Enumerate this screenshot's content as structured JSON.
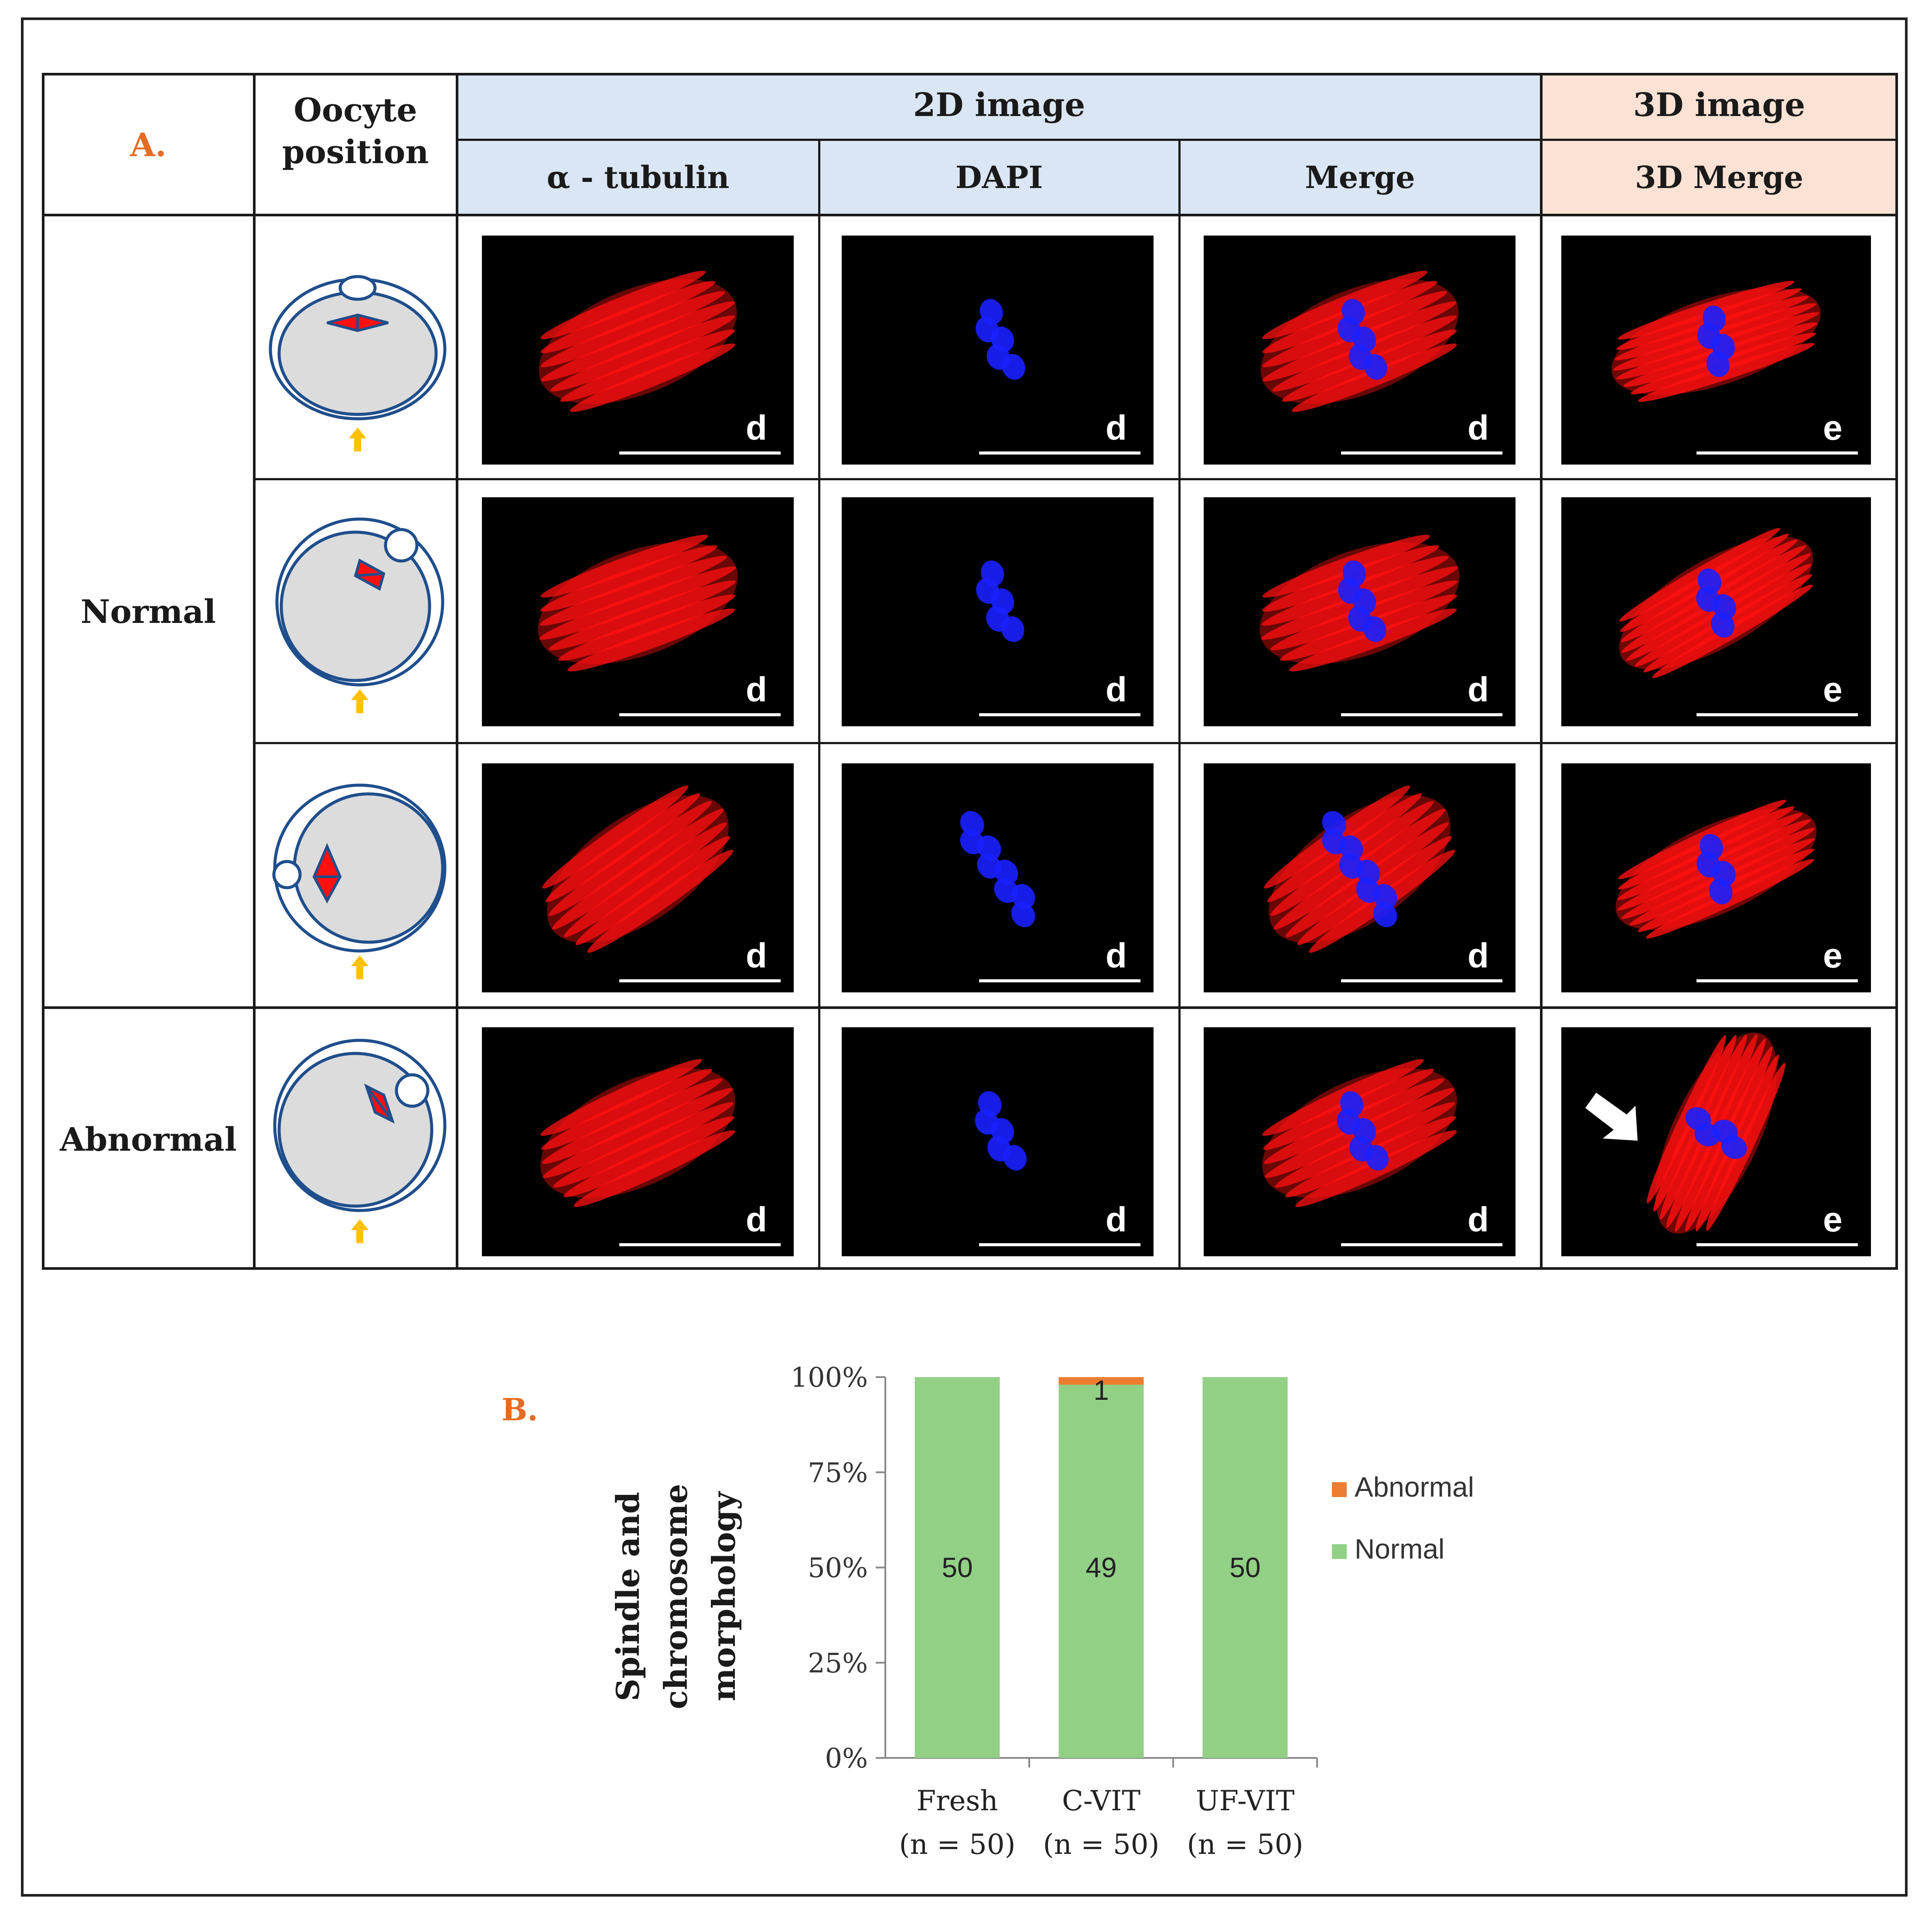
{
  "panel_a": {
    "label": "A.",
    "col_oocyte": "Oocyte position",
    "col_2d": "2D image",
    "col_3d": "3D image",
    "sub_tubulin": "α - tubulin",
    "sub_dapi": "DAPI",
    "sub_merge": "Merge",
    "sub_3dmerge": "3D Merge",
    "row_normal": "Normal",
    "row_abnormal": "Abnormal",
    "scale_letter_2d": "d",
    "scale_letter_3d": "e",
    "colors": {
      "header_2d": "#dae6f4",
      "header_3d": "#fbe2d4",
      "label_orange": "#e46c24",
      "tubulin": "#ff1010",
      "dapi": "#1a20ff",
      "oocyte_outline": "#1f4e8c",
      "arrow": "#ffc000"
    }
  },
  "panel_b": {
    "label": "B.",
    "y_title": "Spindle and chromosome morphology",
    "legend": [
      "Abnormal",
      "Normal"
    ]
  },
  "chart_data": {
    "type": "bar",
    "stacked": true,
    "normalized_100": true,
    "categories": [
      "Fresh\n(n = 50)",
      "C-VIT\n(n = 50)",
      "UF-VIT\n(n = 50)"
    ],
    "category_lines": [
      [
        "Fresh",
        "(n = 50)"
      ],
      [
        "C-VIT",
        "(n = 50)"
      ],
      [
        "UF-VIT",
        "(n = 50)"
      ]
    ],
    "series": [
      {
        "name": "Normal",
        "values": [
          50,
          49,
          50
        ],
        "color": "#92d086",
        "labels": [
          "50",
          "49",
          "50"
        ]
      },
      {
        "name": "Abnormal",
        "values": [
          0,
          1,
          0
        ],
        "color": "#ed7d31",
        "labels": [
          "",
          "1",
          ""
        ]
      }
    ],
    "ylabel": "Spindle and chromosome morphology",
    "yticks": [
      "0%",
      "25%",
      "50%",
      "75%",
      "100%"
    ],
    "ylim": [
      0,
      100
    ],
    "grid": false,
    "legend_position": "right"
  }
}
